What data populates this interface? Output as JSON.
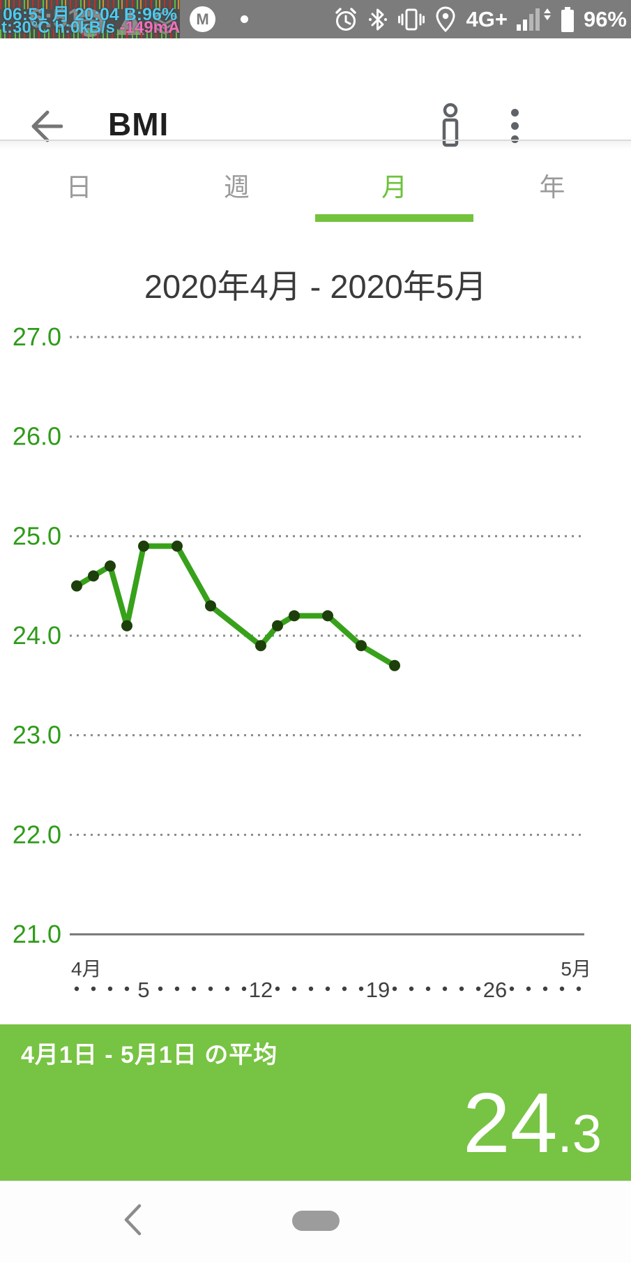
{
  "status_bar": {
    "overlay_line1": "06:51 月 20:04 B:96%",
    "overlay_line2_left": "t:30°C h:0kB/s ",
    "overlay_line2_right": "-149mA",
    "system_time": "6:51",
    "m_badge": "M",
    "network_label": "4G+",
    "battery_percent": "96%",
    "left_icons": [
      "spotify",
      "warning",
      "layers"
    ],
    "right_icons": [
      "alarm",
      "bluetooth",
      "vibrate",
      "location",
      "signal",
      "battery"
    ]
  },
  "app_bar": {
    "title": "BMI"
  },
  "tabs": {
    "items": [
      {
        "label": "日",
        "active": false
      },
      {
        "label": "週",
        "active": false
      },
      {
        "label": "月",
        "active": true
      },
      {
        "label": "年",
        "active": false
      }
    ]
  },
  "chart_data": {
    "type": "line",
    "title": "2020年4月 - 2020年5月",
    "y_axis": {
      "ticks": [
        {
          "label": "27.0",
          "value": 27
        },
        {
          "label": "26.0",
          "value": 26
        },
        {
          "label": "25.0",
          "value": 25
        },
        {
          "label": "24.0",
          "value": 24
        },
        {
          "label": "23.0",
          "value": 23
        },
        {
          "label": "22.0",
          "value": 22
        },
        {
          "label": "21.0",
          "value": 21
        }
      ],
      "min": 21,
      "max": 27,
      "grid": "dotted"
    },
    "x_axis": {
      "start_label": "4月",
      "end_label": "5月",
      "day_min": 1,
      "day_max": 31,
      "tick_days": [
        5,
        12,
        19,
        26
      ]
    },
    "series": [
      {
        "name": "BMI",
        "days": [
          1,
          2,
          3,
          4,
          5,
          7,
          9,
          12,
          13,
          14,
          16,
          18,
          20
        ],
        "values": [
          24.5,
          24.6,
          24.7,
          24.1,
          24.9,
          24.9,
          24.3,
          23.9,
          24.1,
          24.2,
          24.2,
          23.9,
          23.7
        ]
      }
    ],
    "colors": {
      "line": "#38a11b",
      "point": "#1d3f0b",
      "axis_label": "#2e9b19",
      "grid": "#8a8a8a",
      "axis_line": "#757575",
      "x_text": "#3f3f3f"
    }
  },
  "summary": {
    "label": "4月1日 - 5月1日 の平均",
    "value": "24.3",
    "value_int": "24",
    "value_frac": ".3",
    "bg_color": "#77c343"
  },
  "theme": {
    "accent_green": "#74c33c",
    "tab_active": "#6cc23a"
  }
}
